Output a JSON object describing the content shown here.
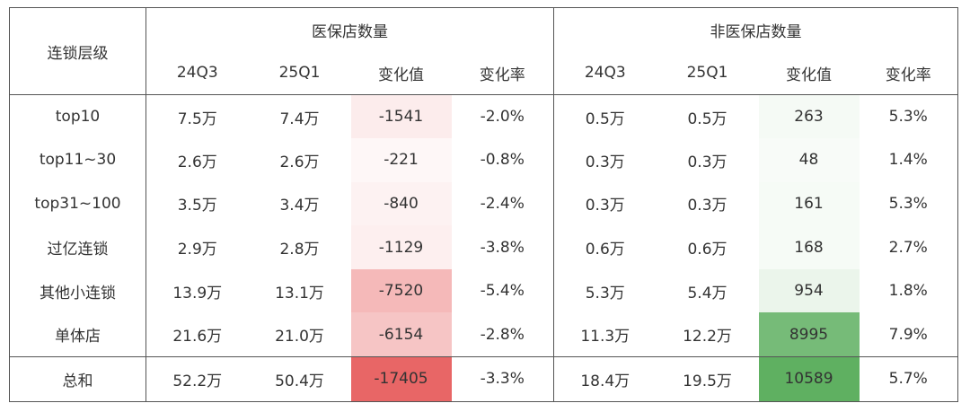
{
  "chart_data": {
    "type": "table",
    "header": {
      "tier_label": "连锁层级",
      "groups": [
        "医保店数量",
        "非医保店数量"
      ],
      "subcolumns": [
        "24Q3",
        "25Q1",
        "变化值",
        "变化率"
      ]
    },
    "rows": [
      {
        "tier": "top10",
        "ins": [
          "7.5万",
          "7.4万",
          "-1541",
          "-2.0%"
        ],
        "ins_change": -1541,
        "non": [
          "0.5万",
          "0.5万",
          "263",
          "5.3%"
        ],
        "non_change": 263
      },
      {
        "tier": "top11~30",
        "ins": [
          "2.6万",
          "2.6万",
          "-221",
          "-0.8%"
        ],
        "ins_change": -221,
        "non": [
          "0.3万",
          "0.3万",
          "48",
          "1.4%"
        ],
        "non_change": 48
      },
      {
        "tier": "top31~100",
        "ins": [
          "3.5万",
          "3.4万",
          "-840",
          "-2.4%"
        ],
        "ins_change": -840,
        "non": [
          "0.3万",
          "0.3万",
          "161",
          "5.3%"
        ],
        "non_change": 161
      },
      {
        "tier": "过亿连锁",
        "ins": [
          "2.9万",
          "2.8万",
          "-1129",
          "-3.8%"
        ],
        "ins_change": -1129,
        "non": [
          "0.6万",
          "0.6万",
          "168",
          "2.7%"
        ],
        "non_change": 168
      },
      {
        "tier": "其他小连锁",
        "ins": [
          "13.9万",
          "13.1万",
          "-7520",
          "-5.4%"
        ],
        "ins_change": -7520,
        "non": [
          "5.3万",
          "5.4万",
          "954",
          "1.8%"
        ],
        "non_change": 954
      },
      {
        "tier": "单体店",
        "ins": [
          "21.6万",
          "21.0万",
          "-6154",
          "-2.8%"
        ],
        "ins_change": -6154,
        "non": [
          "11.3万",
          "12.2万",
          "8995",
          "7.9%"
        ],
        "non_change": 8995
      }
    ],
    "total": {
      "tier": "总和",
      "ins": [
        "52.2万",
        "50.4万",
        "-17405",
        "-3.3%"
      ],
      "ins_change": -17405,
      "non": [
        "18.4万",
        "19.5万",
        "10589",
        "5.7%"
      ],
      "non_change": 10589
    },
    "heat_colors": {
      "negative": "#e86666",
      "positive": "#5fb061"
    }
  }
}
